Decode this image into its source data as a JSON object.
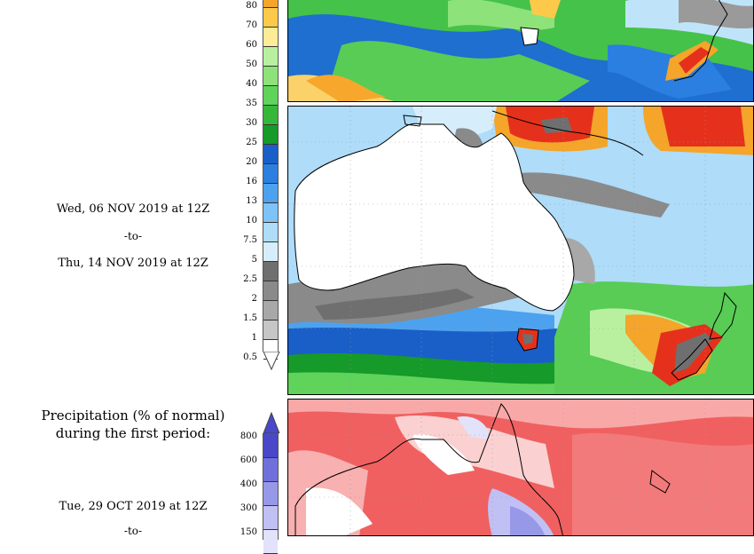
{
  "precip_scale": {
    "ticks": [
      "80",
      "70",
      "60",
      "50",
      "40",
      "35",
      "30",
      "25",
      "20",
      "16",
      "13",
      "10",
      "7.5",
      "5",
      "2.5",
      "2",
      "1.5",
      "1",
      "0.5"
    ],
    "colors": [
      "#f4a52a",
      "#fcc94a",
      "#fdeb96",
      "#b8f0a0",
      "#8ee27a",
      "#5fd35a",
      "#35b83a",
      "#169a2a",
      "#1a5fc8",
      "#2b7fe0",
      "#4da2ef",
      "#7dc3f7",
      "#aedcf9",
      "#d6eefb",
      "#6f6f6f",
      "#8a8a8a",
      "#a8a8a8",
      "#c6c6c6",
      "#ffffff"
    ]
  },
  "period2": {
    "start": "Wed, 06 NOV 2019 at 12Z",
    "separator": "-to-",
    "end": "Thu, 14 NOV 2019 at 12Z"
  },
  "normal_panel": {
    "title_line1": "Precipitation (% of normal)",
    "title_line2": "during the first period:",
    "start": "Tue, 29 OCT 2019 at 12Z",
    "separator": "-to-",
    "scale_ticks": [
      "800",
      "600",
      "400",
      "300",
      "150"
    ],
    "scale_colors": [
      "#4848c8",
      "#7070dc",
      "#9898e8",
      "#c0c0f4",
      "#e2e2fb"
    ]
  },
  "map_colors": {
    "land": "#ffffff",
    "coast": "#000000",
    "high_red": "#e5311c",
    "deficit_red": "#f06060"
  }
}
